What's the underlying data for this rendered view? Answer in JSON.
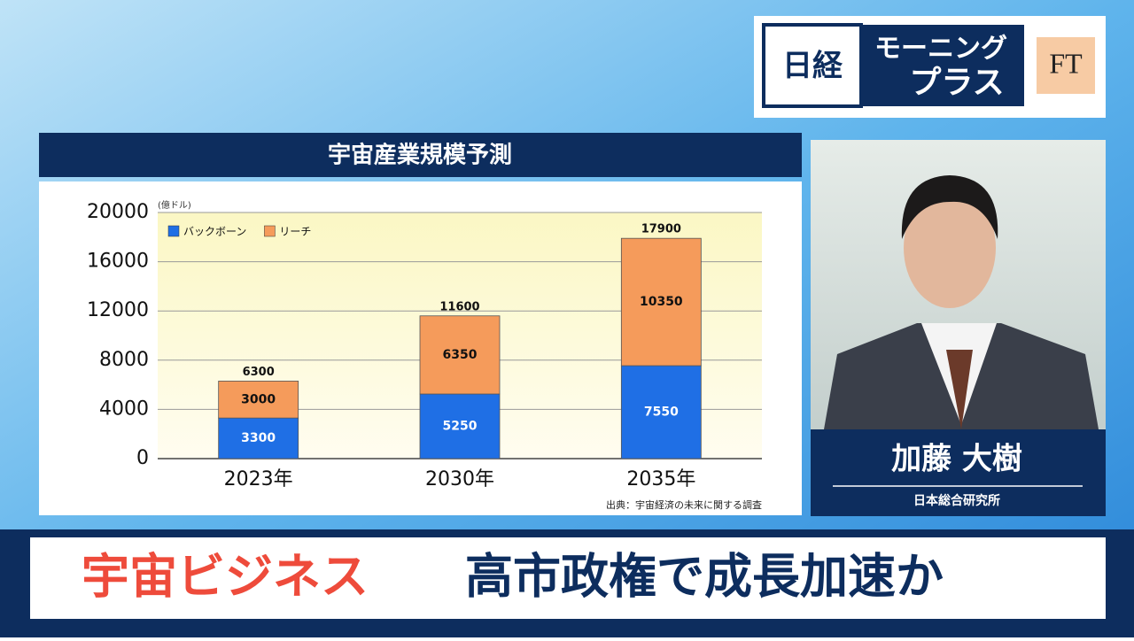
{
  "logo": {
    "nikkei": "日経",
    "program_line1": "モーニング",
    "program_line2": "プラス",
    "ft": "FT"
  },
  "chart_data": {
    "type": "stacked_bar",
    "title": "宇宙産業規模予測",
    "unit": "(億ドル)",
    "categories": [
      "2023年",
      "2030年",
      "2035年"
    ],
    "series": [
      {
        "name": "バックボーン",
        "color": "#1f6fe5",
        "values": [
          3300,
          5250,
          7550
        ]
      },
      {
        "name": "リーチ",
        "color": "#f59b5b",
        "values": [
          3000,
          6350,
          10350
        ]
      }
    ],
    "totals": [
      6300,
      11600,
      17900
    ],
    "ylim": [
      0,
      20000
    ],
    "yticks": [
      0,
      4000,
      8000,
      12000,
      16000,
      20000
    ],
    "grid": true,
    "legend": "top-left",
    "source": "出典：宇宙経済の未来に関する調査"
  },
  "presenter": {
    "name": "加藤 大樹",
    "affiliation": "日本総合研究所"
  },
  "headline": {
    "highlight": "宇宙ビジネス",
    "text": "高市政権で成長加速か"
  }
}
